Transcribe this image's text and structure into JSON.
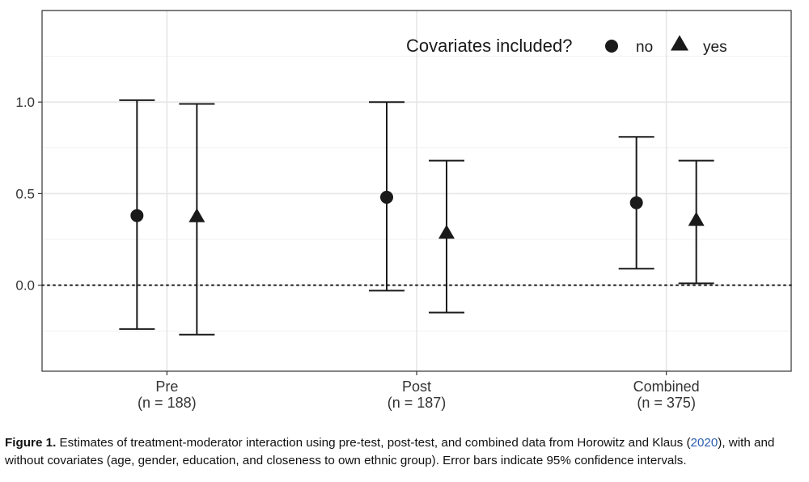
{
  "chart_data": {
    "type": "scatter",
    "subtype": "point-range",
    "categories": [
      {
        "label": "Pre",
        "sublabel": "(n = 188)"
      },
      {
        "label": "Post",
        "sublabel": "(n = 187)"
      },
      {
        "label": "Combined",
        "sublabel": "(n = 375)"
      }
    ],
    "series": [
      {
        "name": "no",
        "marker": "circle",
        "points": [
          {
            "estimate": 0.38,
            "lower": -0.24,
            "upper": 1.01
          },
          {
            "estimate": 0.48,
            "lower": -0.03,
            "upper": 1.0
          },
          {
            "estimate": 0.45,
            "lower": 0.09,
            "upper": 0.81
          }
        ]
      },
      {
        "name": "yes",
        "marker": "triangle",
        "points": [
          {
            "estimate": 0.37,
            "lower": -0.27,
            "upper": 0.99
          },
          {
            "estimate": 0.28,
            "lower": -0.15,
            "upper": 0.68
          },
          {
            "estimate": 0.35,
            "lower": 0.01,
            "upper": 0.68
          }
        ]
      }
    ],
    "y_ticks": [
      "0.0",
      "0.5",
      "1.0"
    ],
    "ylim": [
      -0.47,
      1.5
    ],
    "reference_line": 0,
    "legend_title": "Covariates included?",
    "legend_position": "top-right",
    "grid": true,
    "colors": {
      "marks": "#1a1a1a",
      "grid": "#e6e6e6",
      "panel_border": "#333333"
    }
  },
  "caption": {
    "label": "Figure 1.",
    "text_before_cite": " Estimates of treatment-moderator interaction using pre-test, post-test, and combined data from Horowitz and Klaus (",
    "cite": "2020",
    "text_after_cite": "), with and without covariates (age, gender, education, and closeness to own ethnic group). Error bars indicate 95% confidence intervals."
  }
}
